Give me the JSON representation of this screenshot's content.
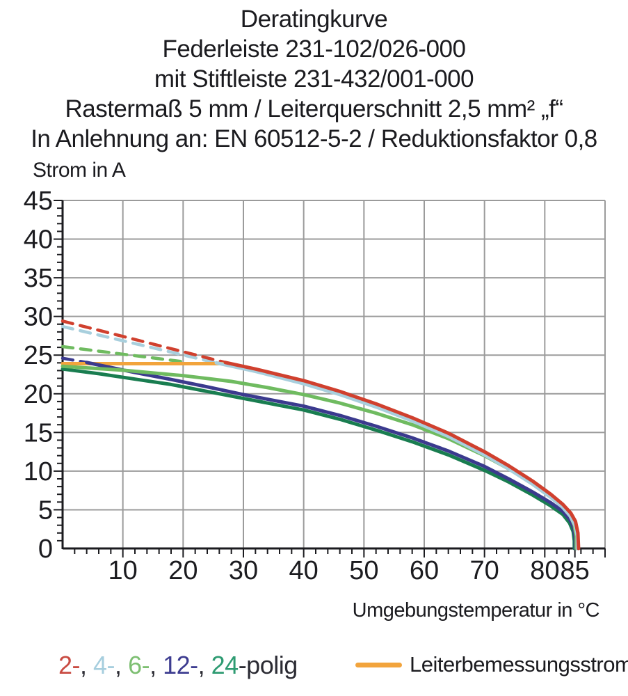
{
  "title_lines": [
    "Deratingkurve",
    "Federleiste 231-102/026-000",
    "mit Stiftleiste 231-432/001-000",
    "Rastermaß 5 mm / Leiterquerschnitt 2,5 mm² „f“",
    "In Anlehnung an: EN 60512-5-2 / Reduktionsfaktor 0,8"
  ],
  "y_axis_label": "Strom in A",
  "x_axis_label": "Umgebungstemperatur in °C",
  "legend": {
    "pole_parts": [
      {
        "text": "2-",
        "color": "#c94b42"
      },
      {
        "text": ", ",
        "color": "#2b2b33"
      },
      {
        "text": "4-",
        "color": "#a6cede"
      },
      {
        "text": ", ",
        "color": "#2b2b33"
      },
      {
        "text": "6-",
        "color": "#7dbf72"
      },
      {
        "text": ", ",
        "color": "#2b2b33"
      },
      {
        "text": "12-",
        "color": "#3d3c90"
      },
      {
        "text": ", ",
        "color": "#2b2b33"
      },
      {
        "text": "24",
        "color": "#2e9b72"
      },
      {
        "text": "-polig",
        "color": "#2b2b33"
      }
    ],
    "rated_label": "Leiterbemessungsstrom",
    "rated_color": "#f2a43c"
  },
  "chart_data": {
    "type": "line",
    "title": "Deratingkurve",
    "xlabel": "Umgebungstemperatur in °C",
    "ylabel": "Strom in A",
    "xlim": [
      0,
      90
    ],
    "ylim": [
      0,
      45
    ],
    "x_ticks": [
      10,
      20,
      30,
      40,
      50,
      60,
      70,
      80,
      85
    ],
    "y_ticks": [
      0,
      5,
      10,
      15,
      20,
      25,
      30,
      35,
      40,
      45
    ],
    "grid": {
      "x_step": 10,
      "y_step": 5,
      "color": "#9b9b9b"
    },
    "rated_current_line": {
      "label": "Leiterbemessungsstrom",
      "color": "#f2a43c",
      "value": 23.9,
      "x_start": 0,
      "x_end": 27.3
    },
    "series": [
      {
        "name": "2-polig",
        "color": "#d0402e",
        "dashed": [
          [
            0,
            29.4
          ],
          [
            27,
            24.05
          ]
        ],
        "solid": [
          [
            27,
            24.05
          ],
          [
            32,
            23.2
          ],
          [
            40,
            21.7
          ],
          [
            46,
            20.3
          ],
          [
            52,
            18.7
          ],
          [
            58,
            16.9
          ],
          [
            64,
            14.9
          ],
          [
            70,
            12.5
          ],
          [
            74,
            10.7
          ],
          [
            78,
            8.7
          ],
          [
            81,
            7.0
          ],
          [
            83,
            5.7
          ],
          [
            84.3,
            4.6
          ],
          [
            85.1,
            3.5
          ],
          [
            85.5,
            2.0
          ],
          [
            85.6,
            0
          ]
        ]
      },
      {
        "name": "4-polig",
        "color": "#a8cfdd",
        "dashed": [
          [
            0,
            28.7
          ],
          [
            25.5,
            24.0
          ]
        ],
        "solid": [
          [
            25.5,
            24.0
          ],
          [
            32,
            22.9
          ],
          [
            40,
            21.3
          ],
          [
            46,
            19.9
          ],
          [
            52,
            18.3
          ],
          [
            58,
            16.5
          ],
          [
            64,
            14.5
          ],
          [
            70,
            12.1
          ],
          [
            74,
            10.3
          ],
          [
            78,
            8.3
          ],
          [
            81,
            6.6
          ],
          [
            83,
            5.3
          ],
          [
            84.2,
            4.2
          ],
          [
            85.0,
            3.0
          ],
          [
            85.4,
            1.6
          ],
          [
            85.4,
            0
          ]
        ]
      },
      {
        "name": "6-polig",
        "color": "#6fbb60",
        "dashed": [
          [
            0,
            26.1
          ],
          [
            20,
            24.15
          ]
        ],
        "solid": [
          [
            0,
            23.55
          ],
          [
            10,
            23.05
          ],
          [
            20,
            22.35
          ],
          [
            28,
            21.6
          ],
          [
            34,
            20.8
          ],
          [
            40,
            19.9
          ],
          [
            46,
            18.8
          ],
          [
            52,
            17.5
          ],
          [
            58,
            16.0
          ],
          [
            64,
            14.2
          ],
          [
            70,
            12.0
          ],
          [
            74,
            10.3
          ],
          [
            78,
            8.4
          ],
          [
            81,
            6.8
          ],
          [
            83,
            5.5
          ],
          [
            84.2,
            4.3
          ],
          [
            84.9,
            3.0
          ],
          [
            85.2,
            1.5
          ],
          [
            85.2,
            0
          ]
        ]
      },
      {
        "name": "12-polig",
        "color": "#3b3a8e",
        "dashed": [
          [
            0,
            24.6
          ],
          [
            4,
            24.05
          ]
        ],
        "solid": [
          [
            4,
            24.05
          ],
          [
            8,
            23.4
          ],
          [
            12,
            22.75
          ],
          [
            18,
            21.85
          ],
          [
            24,
            20.9
          ],
          [
            30,
            19.9
          ],
          [
            36,
            19.0
          ],
          [
            40,
            18.4
          ],
          [
            46,
            17.2
          ],
          [
            52,
            15.8
          ],
          [
            58,
            14.3
          ],
          [
            64,
            12.6
          ],
          [
            70,
            10.6
          ],
          [
            74,
            9.0
          ],
          [
            78,
            7.3
          ],
          [
            81,
            5.9
          ],
          [
            83,
            4.8
          ],
          [
            84.2,
            3.7
          ],
          [
            84.8,
            2.6
          ],
          [
            85.05,
            1.3
          ],
          [
            85.05,
            0
          ]
        ]
      },
      {
        "name": "24-polig",
        "color": "#197d50",
        "solid": [
          [
            0,
            23.2
          ],
          [
            6,
            22.6
          ],
          [
            12,
            21.9
          ],
          [
            18,
            21.2
          ],
          [
            24,
            20.3
          ],
          [
            30,
            19.4
          ],
          [
            36,
            18.5
          ],
          [
            40,
            17.9
          ],
          [
            46,
            16.7
          ],
          [
            52,
            15.3
          ],
          [
            58,
            13.8
          ],
          [
            64,
            12.1
          ],
          [
            70,
            10.1
          ],
          [
            74,
            8.6
          ],
          [
            78,
            6.9
          ],
          [
            81,
            5.5
          ],
          [
            83,
            4.4
          ],
          [
            84.1,
            3.3
          ],
          [
            84.7,
            2.2
          ],
          [
            84.9,
            1.0
          ],
          [
            84.9,
            0
          ]
        ]
      }
    ]
  }
}
